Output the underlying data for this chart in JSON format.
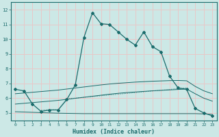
{
  "xlabel": "Humidex (Indice chaleur)",
  "ylabel": "",
  "xlim": [
    -0.5,
    23.5
  ],
  "ylim": [
    4.5,
    12.5
  ],
  "xticks": [
    0,
    1,
    2,
    3,
    4,
    5,
    6,
    7,
    8,
    9,
    10,
    11,
    12,
    13,
    14,
    15,
    16,
    17,
    18,
    19,
    20,
    21,
    22,
    23
  ],
  "yticks": [
    5,
    6,
    7,
    8,
    9,
    10,
    11,
    12
  ],
  "bg_color": "#cce8e6",
  "plot_bg_color": "#cce8e6",
  "grid_color": "#e8c8c8",
  "line_color": "#1a6b6b",
  "series1_x": [
    0,
    1,
    2,
    3,
    4,
    5,
    6,
    7,
    8,
    9,
    10,
    11,
    12,
    13,
    14,
    15,
    16,
    17,
    18,
    19,
    20,
    21,
    22,
    23
  ],
  "series1_y": [
    6.6,
    6.5,
    5.6,
    5.1,
    5.2,
    5.2,
    5.9,
    6.9,
    10.1,
    11.8,
    11.05,
    11.0,
    10.5,
    10.0,
    9.6,
    10.5,
    9.5,
    9.15,
    7.5,
    6.7,
    6.6,
    5.3,
    5.0,
    4.8
  ],
  "series2_x": [
    3,
    4,
    5,
    6,
    20
  ],
  "series2_y": [
    5.18,
    5.22,
    5.22,
    5.95,
    6.7
  ],
  "series3_x": [
    0,
    1,
    2,
    3,
    4,
    5,
    6,
    7,
    8,
    9,
    10,
    11,
    12,
    13,
    14,
    15,
    16,
    17,
    18,
    19,
    20,
    21,
    22,
    23
  ],
  "series3_y": [
    5.08,
    5.06,
    5.04,
    5.02,
    5.0,
    4.98,
    4.97,
    4.96,
    4.95,
    4.95,
    4.95,
    4.95,
    4.95,
    4.95,
    4.95,
    4.95,
    4.95,
    4.95,
    4.95,
    4.95,
    4.95,
    4.95,
    4.93,
    4.9
  ],
  "series4_x": [
    0,
    1,
    2,
    3,
    4,
    5,
    6,
    7,
    8,
    9,
    10,
    11,
    12,
    13,
    14,
    15,
    16,
    17,
    18,
    19,
    20,
    21,
    22,
    23
  ],
  "series4_y": [
    5.6,
    5.65,
    5.7,
    5.75,
    5.8,
    5.85,
    5.92,
    5.99,
    6.06,
    6.13,
    6.2,
    6.27,
    6.33,
    6.38,
    6.42,
    6.46,
    6.5,
    6.53,
    6.56,
    6.59,
    6.62,
    6.3,
    6.0,
    5.8
  ],
  "series5_x": [
    0,
    1,
    2,
    3,
    4,
    5,
    6,
    7,
    8,
    9,
    10,
    11,
    12,
    13,
    14,
    15,
    16,
    17,
    18,
    19,
    20,
    21,
    22,
    23
  ],
  "series5_y": [
    6.3,
    6.35,
    6.4,
    6.45,
    6.5,
    6.55,
    6.62,
    6.69,
    6.76,
    6.83,
    6.9,
    6.96,
    7.01,
    7.05,
    7.09,
    7.12,
    7.15,
    7.17,
    7.19,
    7.2,
    7.18,
    6.8,
    6.5,
    6.3
  ]
}
